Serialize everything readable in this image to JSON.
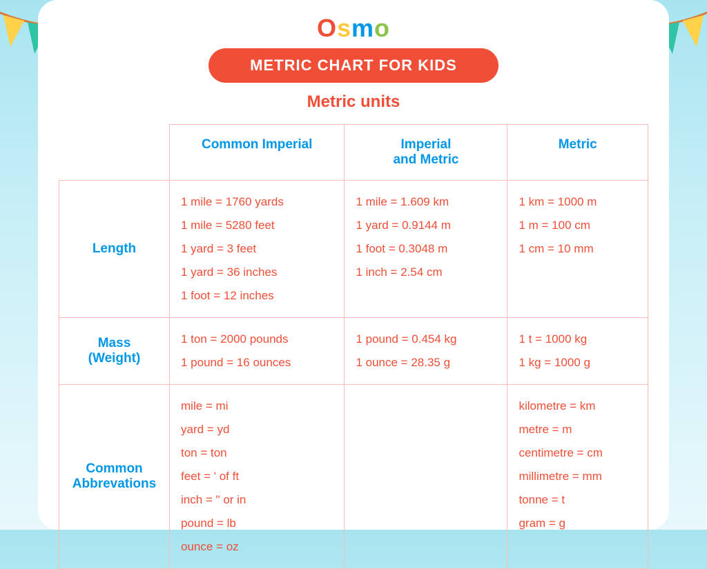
{
  "logo": {
    "letters": [
      "O",
      "s",
      "m",
      "o"
    ],
    "colors": [
      "#f04e37",
      "#ffc83d",
      "#0097e6",
      "#8bc34a"
    ]
  },
  "title": "METRIC CHART FOR KIDS",
  "subtitle": "Metric units",
  "colors": {
    "accent_red": "#f04e37",
    "accent_blue": "#0097e6",
    "border": "#f7bfb6",
    "bg_top": "#a8e4f0",
    "bg_bottom": "#e8f8fc",
    "card_bg": "#ffffff",
    "bunting": [
      "#ffd24a",
      "#2fc4a6",
      "#ff6b5b",
      "#2aa8e0"
    ]
  },
  "columns": [
    {
      "key": "imperial",
      "label": "Common Imperial"
    },
    {
      "key": "imp_metric",
      "label": "Imperial\nand Metric"
    },
    {
      "key": "metric",
      "label": "Metric"
    }
  ],
  "rows": [
    {
      "label": "Length",
      "imperial": [
        "1 mile = 1760 yards",
        "1 mile = 5280 feet",
        "1 yard = 3 feet",
        "1 yard = 36 inches",
        "1 foot = 12 inches"
      ],
      "imp_metric": [
        "1 mile = 1.609 km",
        "1 yard = 0.9144 m",
        "1 foot = 0.3048 m",
        "1 inch = 2.54 cm"
      ],
      "metric": [
        "1 km = 1000 m",
        "1 m = 100 cm",
        "1 cm = 10 mm"
      ]
    },
    {
      "label": "Mass\n(Weight)",
      "imperial": [
        "1 ton = 2000 pounds",
        "1 pound = 16 ounces"
      ],
      "imp_metric": [
        "1 pound = 0.454 kg",
        "1 ounce = 28.35 g"
      ],
      "metric": [
        "1 t = 1000 kg",
        "1 kg = 1000 g"
      ]
    },
    {
      "label": "Common\nAbbrevations",
      "imperial": [
        "mile = mi",
        "yard = yd",
        "ton = ton",
        "feet = ' of ft",
        "inch = \" or in",
        "pound = lb",
        "ounce = oz"
      ],
      "imp_metric": [],
      "metric": [
        "kilometre = km",
        "metre = m",
        "centimetre = cm",
        "millimetre = mm",
        "tonne = t",
        "gram = g"
      ]
    }
  ]
}
